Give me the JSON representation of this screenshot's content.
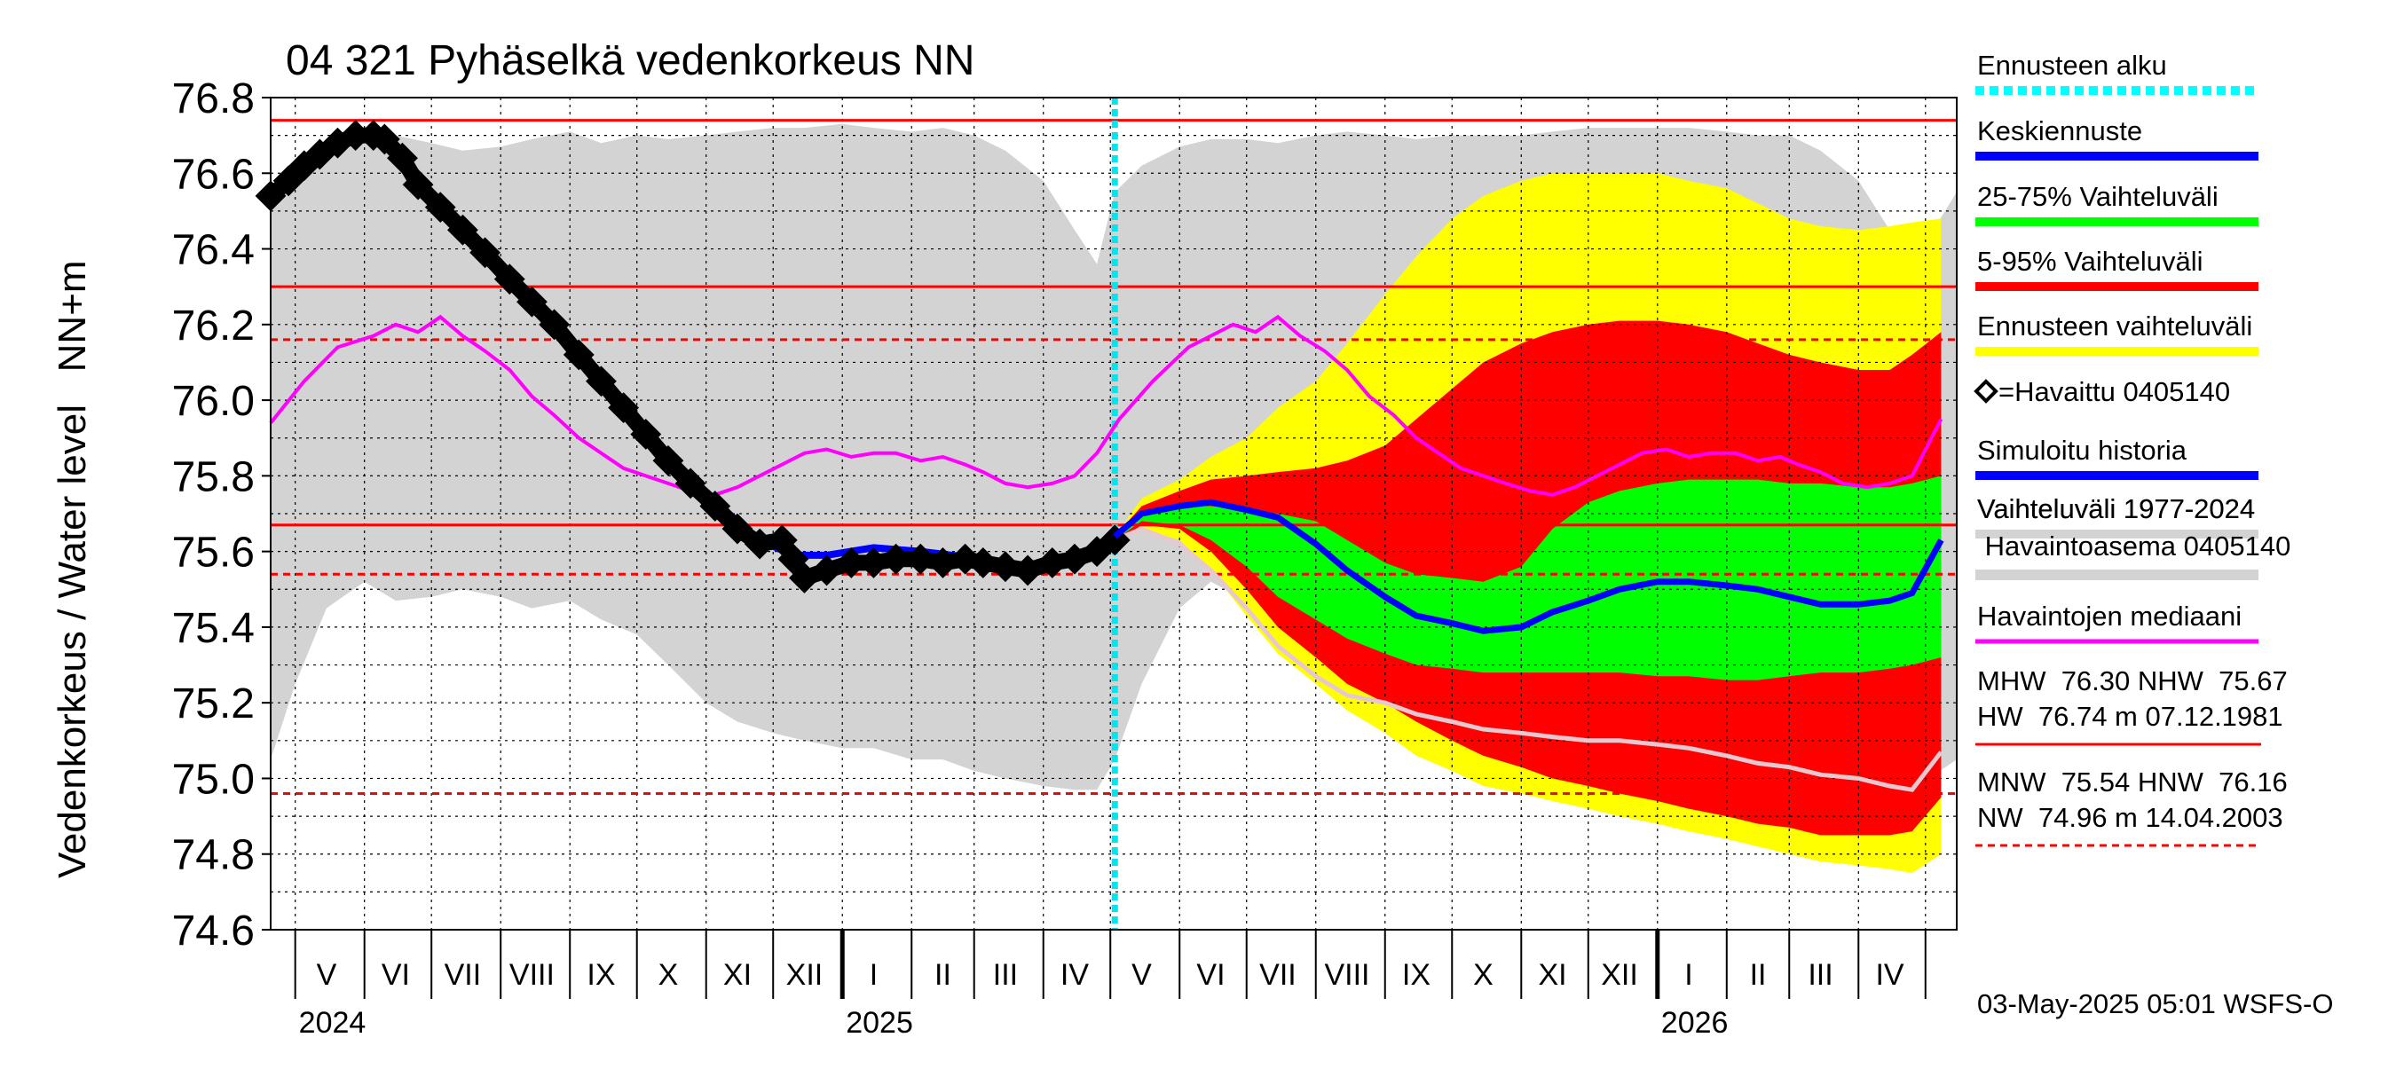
{
  "chart_data": {
    "type": "area",
    "title": "04 321 Pyhäselkä vedenkorkeus NN",
    "ylabel": "Vedenkorkeus / Water level   NN+m",
    "ylim": [
      74.6,
      76.8
    ],
    "yticks": [
      "74.6",
      "74.8",
      "75.0",
      "75.2",
      "75.4",
      "75.6",
      "75.8",
      "76.0",
      "76.2",
      "76.4",
      "76.6",
      "76.8"
    ],
    "xlim": [
      "2024-04-20",
      "2026-05-15"
    ],
    "month_labels": [
      {
        "date": "2024-05-15",
        "label": "V"
      },
      {
        "date": "2024-06-15",
        "label": "VI"
      },
      {
        "date": "2024-07-15",
        "label": "VII"
      },
      {
        "date": "2024-08-15",
        "label": "VIII"
      },
      {
        "date": "2024-09-15",
        "label": "IX"
      },
      {
        "date": "2024-10-15",
        "label": "X"
      },
      {
        "date": "2024-11-15",
        "label": "XI"
      },
      {
        "date": "2024-12-15",
        "label": "XII"
      },
      {
        "date": "2025-01-15",
        "label": "I"
      },
      {
        "date": "2025-02-15",
        "label": "II"
      },
      {
        "date": "2025-03-15",
        "label": "III"
      },
      {
        "date": "2025-04-15",
        "label": "IV"
      },
      {
        "date": "2025-05-15",
        "label": "V"
      },
      {
        "date": "2025-06-15",
        "label": "VI"
      },
      {
        "date": "2025-07-15",
        "label": "VII"
      },
      {
        "date": "2025-08-15",
        "label": "VIII"
      },
      {
        "date": "2025-09-15",
        "label": "IX"
      },
      {
        "date": "2025-10-15",
        "label": "X"
      },
      {
        "date": "2025-11-15",
        "label": "XI"
      },
      {
        "date": "2025-12-15",
        "label": "XII"
      },
      {
        "date": "2026-01-15",
        "label": "I"
      },
      {
        "date": "2026-02-15",
        "label": "II"
      },
      {
        "date": "2026-03-15",
        "label": "III"
      },
      {
        "date": "2026-04-15",
        "label": "IV"
      }
    ],
    "year_labels": [
      {
        "date": "2024-05-01",
        "label": "2024"
      },
      {
        "date": "2025-01-01",
        "label": "2025"
      },
      {
        "date": "2026-01-01",
        "label": "2026"
      }
    ],
    "forecast_start": "2025-05-03",
    "reference_lines": [
      {
        "name": "HW",
        "value": 76.74,
        "style": "solid"
      },
      {
        "name": "MHW",
        "value": 76.3,
        "style": "solid"
      },
      {
        "name": "HNW",
        "value": 76.16,
        "style": "dashed"
      },
      {
        "name": "NHW",
        "value": 75.67,
        "style": "solid"
      },
      {
        "name": "MNW",
        "value": 75.54,
        "style": "dashed"
      },
      {
        "name": "NW",
        "value": 74.96,
        "style": "dashed"
      }
    ],
    "history_band": {
      "x": [
        "2024-04-20",
        "2024-05-01",
        "2024-05-15",
        "2024-06-01",
        "2024-06-15",
        "2024-07-01",
        "2024-07-15",
        "2024-08-01",
        "2024-08-15",
        "2024-09-01",
        "2024-09-15",
        "2024-10-01",
        "2024-10-15",
        "2024-11-01",
        "2024-11-15",
        "2024-12-01",
        "2024-12-15",
        "2025-01-01",
        "2025-01-15",
        "2025-02-01",
        "2025-02-15",
        "2025-03-01",
        "2025-03-15",
        "2025-04-01",
        "2025-04-15",
        "2025-04-25",
        "2025-05-03",
        "2025-05-15",
        "2025-06-01",
        "2025-06-15",
        "2025-07-01",
        "2025-07-15",
        "2025-08-01",
        "2025-08-15",
        "2025-09-01",
        "2025-09-15",
        "2025-10-01",
        "2025-10-15",
        "2025-11-01",
        "2025-11-15",
        "2025-12-01",
        "2025-12-15",
        "2026-01-01",
        "2026-01-15",
        "2026-02-01",
        "2026-02-15",
        "2026-03-01",
        "2026-03-15",
        "2026-04-01",
        "2026-04-15",
        "2026-04-25",
        "2026-05-15"
      ],
      "upper": [
        76.55,
        76.6,
        76.65,
        76.7,
        76.7,
        76.68,
        76.66,
        76.67,
        76.69,
        76.71,
        76.68,
        76.7,
        76.69,
        76.7,
        76.71,
        76.72,
        76.72,
        76.73,
        76.72,
        76.71,
        76.72,
        76.7,
        76.66,
        76.58,
        76.45,
        76.36,
        76.55,
        76.62,
        76.67,
        76.69,
        76.69,
        76.68,
        76.7,
        76.71,
        76.7,
        76.69,
        76.7,
        76.7,
        76.7,
        76.71,
        76.72,
        76.72,
        76.72,
        76.72,
        76.71,
        76.7,
        76.7,
        76.66,
        76.58,
        76.45,
        76.36,
        76.55
      ],
      "lower": [
        75.05,
        75.25,
        75.45,
        75.52,
        75.47,
        75.48,
        75.5,
        75.48,
        75.45,
        75.47,
        75.42,
        75.38,
        75.3,
        75.2,
        75.15,
        75.12,
        75.1,
        75.08,
        75.08,
        75.05,
        75.05,
        75.02,
        75.0,
        74.98,
        74.97,
        74.97,
        75.05,
        75.25,
        75.45,
        75.52,
        75.47,
        75.48,
        75.5,
        75.48,
        75.45,
        75.47,
        75.42,
        75.38,
        75.3,
        75.2,
        75.15,
        75.12,
        75.1,
        75.08,
        75.08,
        75.05,
        75.05,
        75.02,
        75.0,
        74.98,
        74.97,
        75.05
      ]
    },
    "forecast": {
      "x": [
        "2025-05-03",
        "2025-05-15",
        "2025-06-01",
        "2025-06-15",
        "2025-07-01",
        "2025-07-15",
        "2025-08-01",
        "2025-08-15",
        "2025-09-01",
        "2025-09-15",
        "2025-10-01",
        "2025-10-15",
        "2025-11-01",
        "2025-11-15",
        "2025-12-01",
        "2025-12-15",
        "2026-01-01",
        "2026-01-15",
        "2026-02-01",
        "2026-02-15",
        "2026-03-01",
        "2026-03-15",
        "2026-04-01",
        "2026-04-15",
        "2026-04-25",
        "2026-05-08"
      ],
      "range_upper": [
        75.64,
        75.74,
        75.79,
        75.85,
        75.9,
        75.98,
        76.05,
        76.15,
        76.28,
        76.38,
        76.48,
        76.54,
        76.58,
        76.6,
        76.6,
        76.6,
        76.6,
        76.58,
        76.56,
        76.52,
        76.48,
        76.46,
        76.45,
        76.46,
        76.47,
        76.48
      ],
      "range_lower": [
        75.62,
        75.66,
        75.63,
        75.55,
        75.43,
        75.33,
        75.25,
        75.18,
        75.12,
        75.06,
        75.02,
        74.98,
        74.96,
        74.94,
        74.92,
        74.9,
        74.88,
        74.86,
        74.84,
        74.82,
        74.8,
        74.78,
        74.77,
        74.76,
        74.75,
        74.8
      ],
      "p95": [
        75.64,
        75.72,
        75.76,
        75.79,
        75.8,
        75.81,
        75.82,
        75.84,
        75.88,
        75.95,
        76.03,
        76.1,
        76.15,
        76.18,
        76.2,
        76.21,
        76.21,
        76.2,
        76.18,
        76.15,
        76.12,
        76.1,
        76.08,
        76.08,
        76.12,
        76.18
      ],
      "p5": [
        75.62,
        75.67,
        75.66,
        75.6,
        75.5,
        75.4,
        75.32,
        75.25,
        75.2,
        75.15,
        75.1,
        75.06,
        75.03,
        75.0,
        74.98,
        74.96,
        74.94,
        74.92,
        74.9,
        74.88,
        74.87,
        74.85,
        74.85,
        74.85,
        74.86,
        74.95
      ],
      "p75": [
        75.64,
        75.7,
        75.72,
        75.72,
        75.71,
        75.7,
        75.68,
        75.63,
        75.57,
        75.54,
        75.53,
        75.52,
        75.56,
        75.66,
        75.73,
        75.76,
        75.78,
        75.79,
        75.79,
        75.79,
        75.78,
        75.78,
        75.77,
        75.77,
        75.78,
        75.8
      ],
      "p25": [
        75.63,
        75.68,
        75.67,
        75.63,
        75.56,
        75.48,
        75.42,
        75.37,
        75.33,
        75.3,
        75.29,
        75.28,
        75.28,
        75.28,
        75.28,
        75.28,
        75.27,
        75.27,
        75.26,
        75.26,
        75.27,
        75.28,
        75.28,
        75.29,
        75.3,
        75.32
      ],
      "median": [
        75.64,
        75.7,
        75.72,
        75.73,
        75.71,
        75.69,
        75.62,
        75.55,
        75.48,
        75.43,
        75.41,
        75.39,
        75.4,
        75.44,
        75.47,
        75.5,
        75.52,
        75.52,
        75.51,
        75.5,
        75.48,
        75.46,
        75.46,
        75.47,
        75.49,
        75.63
      ],
      "min_curve": [
        75.63,
        75.66,
        75.62,
        75.55,
        75.45,
        75.35,
        75.27,
        75.22,
        75.2,
        75.17,
        75.15,
        75.13,
        75.12,
        75.11,
        75.1,
        75.1,
        75.09,
        75.08,
        75.06,
        75.04,
        75.03,
        75.01,
        75.0,
        74.98,
        74.97,
        75.07
      ]
    },
    "observed": {
      "x": [
        "2024-04-20",
        "2024-04-28",
        "2024-05-05",
        "2024-05-12",
        "2024-05-20",
        "2024-05-28",
        "2024-06-05",
        "2024-06-10",
        "2024-06-18",
        "2024-06-25",
        "2024-07-05",
        "2024-07-15",
        "2024-07-25",
        "2024-08-05",
        "2024-08-15",
        "2024-08-25",
        "2024-09-05",
        "2024-09-15",
        "2024-09-25",
        "2024-10-05",
        "2024-10-15",
        "2024-10-25",
        "2024-11-05",
        "2024-11-15",
        "2024-11-25",
        "2024-12-05",
        "2024-12-10",
        "2024-12-15",
        "2024-12-25",
        "2025-01-05",
        "2025-01-15",
        "2025-01-25",
        "2025-02-05",
        "2025-02-15",
        "2025-02-25",
        "2025-03-05",
        "2025-03-15",
        "2025-03-25",
        "2025-04-05",
        "2025-04-15",
        "2025-04-25",
        "2025-05-03"
      ],
      "y": [
        76.54,
        76.58,
        76.62,
        76.65,
        76.68,
        76.7,
        76.7,
        76.69,
        76.64,
        76.57,
        76.51,
        76.45,
        76.39,
        76.32,
        76.26,
        76.2,
        76.12,
        76.05,
        75.98,
        75.91,
        75.84,
        75.78,
        75.72,
        75.66,
        75.62,
        75.63,
        75.58,
        75.53,
        75.55,
        75.57,
        75.57,
        75.58,
        75.58,
        75.57,
        75.58,
        75.57,
        75.56,
        75.55,
        75.57,
        75.58,
        75.6,
        75.63
      ]
    },
    "simulated": {
      "x": [
        "2024-04-20",
        "2024-05-05",
        "2024-05-20",
        "2024-06-05",
        "2024-06-18",
        "2024-07-05",
        "2024-07-25",
        "2024-08-15",
        "2024-09-05",
        "2024-09-25",
        "2024-10-15",
        "2024-11-05",
        "2024-11-25",
        "2024-12-10",
        "2024-12-25",
        "2025-01-15",
        "2025-02-05",
        "2025-03-05",
        "2025-03-25",
        "2025-04-15",
        "2025-05-03"
      ],
      "y": [
        76.54,
        76.62,
        76.68,
        76.71,
        76.64,
        76.52,
        76.4,
        76.27,
        76.13,
        75.99,
        75.85,
        75.73,
        75.63,
        75.59,
        75.59,
        75.61,
        75.6,
        75.58,
        75.56,
        75.59,
        75.63
      ]
    },
    "median_history": {
      "x": [
        "2024-04-20",
        "2024-05-05",
        "2024-05-20",
        "2024-06-05",
        "2024-06-15",
        "2024-06-25",
        "2024-07-05",
        "2024-07-15",
        "2024-07-25",
        "2024-08-05",
        "2024-08-15",
        "2024-08-25",
        "2024-09-05",
        "2024-09-15",
        "2024-09-25",
        "2024-10-05",
        "2024-10-15",
        "2024-10-25",
        "2024-11-05",
        "2024-11-15",
        "2024-11-25",
        "2024-12-05",
        "2024-12-15",
        "2024-12-25",
        "2025-01-05",
        "2025-01-15",
        "2025-01-25",
        "2025-02-05",
        "2025-02-15",
        "2025-02-25",
        "2025-03-05",
        "2025-03-15",
        "2025-03-25",
        "2025-04-05",
        "2025-04-15",
        "2025-04-25",
        "2025-05-05",
        "2025-05-20",
        "2025-06-05",
        "2025-06-15",
        "2025-06-25",
        "2025-07-05",
        "2025-07-15",
        "2025-07-25",
        "2025-08-05",
        "2025-08-15",
        "2025-08-25",
        "2025-09-05",
        "2025-09-15",
        "2025-09-25",
        "2025-10-05",
        "2025-10-15",
        "2025-10-25",
        "2025-11-05",
        "2025-11-15",
        "2025-11-25",
        "2025-12-05",
        "2025-12-15",
        "2025-12-25",
        "2026-01-05",
        "2026-01-15",
        "2026-01-25",
        "2026-02-05",
        "2026-02-15",
        "2026-02-25",
        "2026-03-05",
        "2026-03-15",
        "2026-03-25",
        "2026-04-05",
        "2026-04-15",
        "2026-04-25",
        "2026-05-08"
      ],
      "y": [
        75.94,
        76.05,
        76.14,
        76.17,
        76.2,
        76.18,
        76.22,
        76.17,
        76.13,
        76.08,
        76.01,
        75.96,
        75.9,
        75.86,
        75.82,
        75.8,
        75.78,
        75.76,
        75.75,
        75.77,
        75.8,
        75.83,
        75.86,
        75.87,
        75.85,
        75.86,
        75.86,
        75.84,
        75.85,
        75.83,
        75.81,
        75.78,
        75.77,
        75.78,
        75.8,
        75.86,
        75.95,
        76.05,
        76.14,
        76.17,
        76.2,
        76.18,
        76.22,
        76.17,
        76.13,
        76.08,
        76.01,
        75.96,
        75.9,
        75.86,
        75.82,
        75.8,
        75.78,
        75.76,
        75.75,
        75.77,
        75.8,
        75.83,
        75.86,
        75.87,
        75.85,
        75.86,
        75.86,
        75.84,
        75.85,
        75.83,
        75.81,
        75.78,
        75.77,
        75.78,
        75.8,
        75.95
      ]
    },
    "legend": [
      {
        "label": "Ennusteen alku",
        "color": "#00ffff",
        "style": "dotted"
      },
      {
        "label": "Keskiennuste",
        "color": "#0000ff",
        "style": "solid"
      },
      {
        "label": "25-75% Vaihteluväli",
        "color": "#00ff00",
        "style": "solid"
      },
      {
        "label": "5-95% Vaihteluväli",
        "color": "#ff0000",
        "style": "solid"
      },
      {
        "label": "Ennusteen vaihteluväli",
        "color": "#ffff00",
        "style": "solid"
      },
      {
        "label": "=Havaittu 0405140",
        "color": "#000000",
        "style": "marker"
      },
      {
        "label": "Simuloitu historia",
        "color": "#0000ff",
        "style": "solid"
      },
      {
        "label": "Vaihteluväli 1977-2024",
        "label2": " Havaintoasema 0405140",
        "color": "#d3d3d3",
        "style": "solid"
      },
      {
        "label": "Havaintojen mediaani",
        "color": "#ff00ff",
        "style": "solid"
      }
    ],
    "stats": {
      "line1": "MHW  76.30 NHW  75.67",
      "line2": "HW  76.74 m 07.12.1981",
      "line3": "MNW  75.54 HNW  76.16",
      "line4": "NW  74.96 m 14.04.2003"
    },
    "footer": "03-May-2025 05:01 WSFS-O",
    "colors": {
      "history_band": "#d3d3d3",
      "forecast_range": "#ffff00",
      "p5_95": "#ff0000",
      "p25_75": "#00ff00",
      "median_forecast": "#0000ff",
      "observed": "#000000",
      "median_history": "#ff00ff",
      "min_curve": "#e8c8d0",
      "reference": "#ff0000",
      "forecast_start": "#00e5ee"
    }
  }
}
